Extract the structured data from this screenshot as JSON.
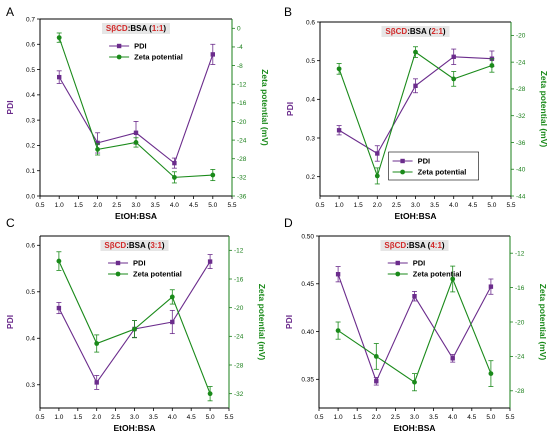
{
  "colors": {
    "pdi": "#6b2c8c",
    "zeta": "#1a8a1a",
    "title_accent": "#d22a2a"
  },
  "chart_data": [
    {
      "type": "line",
      "panel_label": "A",
      "title_parts": [
        {
          "text": "SβCD",
          "accent": true
        },
        {
          "text": ":BSA (",
          "accent": false
        },
        {
          "text": "1:1",
          "accent": true
        },
        {
          "text": ")",
          "accent": false
        }
      ],
      "xlabel": "EtOH:BSA",
      "ylabel": "PDI",
      "y2label": "Zeta potential (mV)",
      "xlim": [
        0.5,
        5.5
      ],
      "xticks": [
        "0.5",
        "1.0",
        "1.5",
        "2.0",
        "2.5",
        "3.0",
        "3.5",
        "4.0",
        "4.5",
        "5.0",
        "5.5"
      ],
      "ylim": [
        0.0,
        0.7
      ],
      "yticks": [
        "0.0",
        "0.1",
        "0.2",
        "0.3",
        "0.4",
        "0.5",
        "0.6",
        "0.7"
      ],
      "y2lim": [
        -36,
        2
      ],
      "y2ticks": [
        "0",
        "-4",
        "-8",
        "-12",
        "-16",
        "-20",
        "-24",
        "-28",
        "-32",
        "-36"
      ],
      "legend_position": "upper-center",
      "x": [
        1,
        2,
        3,
        4,
        5
      ],
      "series": [
        {
          "name": "PDI",
          "axis": "left",
          "values": [
            0.47,
            0.21,
            0.25,
            0.13,
            0.56
          ],
          "errors": [
            0.025,
            0.04,
            0.045,
            0.02,
            0.04
          ]
        },
        {
          "name": "Zeta potential",
          "axis": "right",
          "values": [
            -2,
            -26,
            -24.5,
            -32,
            -31.5
          ],
          "errors": [
            1,
            1.2,
            1,
            1.2,
            1.2
          ]
        }
      ]
    },
    {
      "type": "line",
      "panel_label": "B",
      "title_parts": [
        {
          "text": "SβCD",
          "accent": true
        },
        {
          "text": ":BSA (",
          "accent": false
        },
        {
          "text": "2:1",
          "accent": true
        },
        {
          "text": ")",
          "accent": false
        }
      ],
      "xlabel": "EtOH:BSA",
      "ylabel": "PDI",
      "y2label": "Zeta potential (mV)",
      "xlim": [
        0.5,
        5.5
      ],
      "xticks": [
        "0.5",
        "1.0",
        "1.5",
        "2.0",
        "2.5",
        "3.0",
        "3.5",
        "4.0",
        "4.5",
        "5.0",
        "5.5"
      ],
      "ylim": [
        0.15,
        0.6
      ],
      "yticks": [
        "0.2",
        "0.3",
        "0.4",
        "0.5",
        "0.6"
      ],
      "y2lim": [
        -44,
        -18
      ],
      "y2ticks": [
        "-20",
        "-24",
        "-28",
        "-32",
        "-36",
        "-40",
        "-44"
      ],
      "legend_position": "lower-center",
      "x": [
        1,
        2,
        3,
        4,
        5
      ],
      "series": [
        {
          "name": "PDI",
          "axis": "left",
          "values": [
            0.32,
            0.26,
            0.435,
            0.51,
            0.505
          ],
          "errors": [
            0.012,
            0.02,
            0.018,
            0.02,
            0.02
          ]
        },
        {
          "name": "Zeta potential",
          "axis": "right",
          "values": [
            -25,
            -41,
            -22.5,
            -26.5,
            -24.5
          ],
          "errors": [
            0.8,
            1.2,
            0.8,
            1.1,
            1
          ]
        }
      ]
    },
    {
      "type": "line",
      "panel_label": "C",
      "title_parts": [
        {
          "text": "SβCD",
          "accent": true
        },
        {
          "text": ":BSA (",
          "accent": false
        },
        {
          "text": "3:1",
          "accent": true
        },
        {
          "text": ")",
          "accent": false
        }
      ],
      "xlabel": "EtOH:BSA",
      "ylabel": "PDI",
      "y2label": "Zeta potential (mV)",
      "xlim": [
        0.5,
        5.5
      ],
      "xticks": [
        "0.5",
        "1.0",
        "1.5",
        "2.0",
        "2.5",
        "3.0",
        "3.5",
        "4.0",
        "4.5",
        "5.0",
        "5.5"
      ],
      "ylim": [
        0.25,
        0.62
      ],
      "yticks": [
        "0.3",
        "0.4",
        "0.5",
        "0.6"
      ],
      "y2lim": [
        -34,
        -10
      ],
      "y2ticks": [
        "-12",
        "-16",
        "-20",
        "-24",
        "-28",
        "-32"
      ],
      "legend_position": "upper-center",
      "x": [
        1,
        2,
        3,
        4,
        5
      ],
      "series": [
        {
          "name": "PDI",
          "axis": "left",
          "values": [
            0.465,
            0.305,
            0.42,
            0.435,
            0.565
          ],
          "errors": [
            0.012,
            0.015,
            0.018,
            0.025,
            0.015
          ]
        },
        {
          "name": "Zeta potential",
          "axis": "right",
          "values": [
            -13.5,
            -25,
            -23,
            -18.5,
            -32
          ],
          "errors": [
            1.3,
            1.2,
            1.2,
            1,
            1
          ]
        }
      ]
    },
    {
      "type": "line",
      "panel_label": "D",
      "title_parts": [
        {
          "text": "SβCD",
          "accent": true
        },
        {
          "text": ":BSA (",
          "accent": false
        },
        {
          "text": "4:1",
          "accent": true
        },
        {
          "text": ")",
          "accent": false
        }
      ],
      "xlabel": "EtOH:BSA",
      "ylabel": "PDI",
      "y2label": "Zeta potential (mV)",
      "xlim": [
        0.5,
        5.5
      ],
      "xticks": [
        "0.5",
        "1.0",
        "1.5",
        "2.0",
        "2.5",
        "3.0",
        "3.5",
        "4.0",
        "4.5",
        "5.0",
        "5.5"
      ],
      "ylim": [
        0.32,
        0.5
      ],
      "yticks": [
        "0.35",
        "0.40",
        "0.45",
        "0.50"
      ],
      "y2lim": [
        -30,
        -10
      ],
      "y2ticks": [
        "-12",
        "-16",
        "-20",
        "-24",
        "-28"
      ],
      "legend_position": "upper-center",
      "x": [
        1,
        2,
        3,
        4,
        5
      ],
      "series": [
        {
          "name": "PDI",
          "axis": "left",
          "values": [
            0.46,
            0.348,
            0.437,
            0.372,
            0.447
          ],
          "errors": [
            0.008,
            0.004,
            0.005,
            0.004,
            0.008
          ]
        },
        {
          "name": "Zeta potential",
          "axis": "right",
          "values": [
            -21,
            -24,
            -27,
            -15,
            -26
          ],
          "errors": [
            1,
            1.5,
            1,
            1.5,
            1.5
          ]
        }
      ]
    }
  ]
}
